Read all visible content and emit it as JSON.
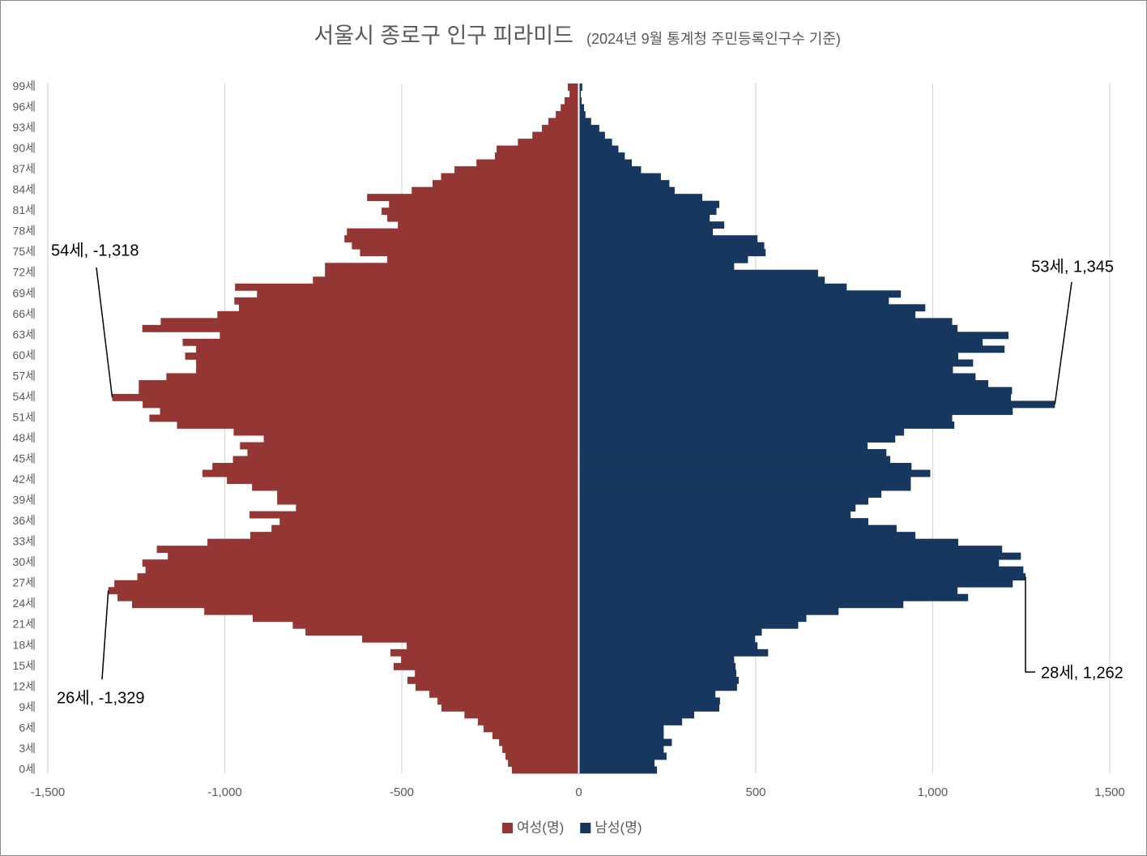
{
  "chart_data": {
    "type": "pyramid",
    "title": "서울시 종로구 인구 피라미드",
    "subtitle": "(2024년 9월 통계청 주민등록인구수 기준)",
    "categories": [
      "0세",
      null,
      null,
      "3세",
      null,
      null,
      "6세",
      null,
      null,
      "9세",
      null,
      null,
      "12세",
      null,
      null,
      "15세",
      null,
      null,
      "18세",
      null,
      null,
      "21세",
      null,
      null,
      "24세",
      null,
      null,
      "27세",
      null,
      null,
      "30세",
      null,
      null,
      "33세",
      null,
      null,
      "36세",
      null,
      null,
      "39세",
      null,
      null,
      "42세",
      null,
      null,
      "45세",
      null,
      null,
      "48세",
      null,
      null,
      "51세",
      null,
      null,
      "54세",
      null,
      null,
      "57세",
      null,
      null,
      "60세",
      null,
      null,
      "63세",
      null,
      null,
      "66세",
      null,
      null,
      "69세",
      null,
      null,
      "72세",
      null,
      null,
      "75세",
      null,
      null,
      "78세",
      null,
      null,
      "81세",
      null,
      null,
      "84세",
      null,
      null,
      "87세",
      null,
      null,
      "90세",
      null,
      null,
      "93세",
      null,
      null,
      "96세",
      null,
      null,
      "99세"
    ],
    "series": [
      {
        "name": "여성(명)",
        "color": "#943634",
        "values": [
          -189,
          -200,
          -207,
          -216,
          -225,
          -244,
          -269,
          -285,
          -323,
          -388,
          -399,
          -422,
          -461,
          -484,
          -463,
          -523,
          -502,
          -532,
          -486,
          -612,
          -772,
          -808,
          -921,
          -1058,
          -1262,
          -1303,
          -1329,
          -1312,
          -1247,
          -1224,
          -1233,
          -1161,
          -1192,
          -1049,
          -928,
          -868,
          -845,
          -930,
          -799,
          -852,
          -852,
          -923,
          -994,
          -1063,
          -1035,
          -977,
          -936,
          -957,
          -890,
          -975,
          -1135,
          -1213,
          -1183,
          -1232,
          -1318,
          -1243,
          -1243,
          -1165,
          -1081,
          -1081,
          -1112,
          -1081,
          -1119,
          -1014,
          -1233,
          -1181,
          -1021,
          -960,
          -973,
          -909,
          -971,
          -751,
          -717,
          -717,
          -541,
          -618,
          -641,
          -662,
          -655,
          -511,
          -541,
          -557,
          -536,
          -598,
          -472,
          -413,
          -389,
          -351,
          -289,
          -237,
          -232,
          -172,
          -131,
          -104,
          -86,
          -65,
          -51,
          -40,
          -26,
          -31
        ]
      },
      {
        "name": "남성(명)",
        "color": "#17375e",
        "values": [
          221,
          214,
          248,
          240,
          263,
          240,
          240,
          292,
          326,
          397,
          399,
          386,
          447,
          452,
          445,
          443,
          439,
          535,
          505,
          498,
          517,
          620,
          643,
          734,
          917,
          1100,
          1070,
          1226,
          1262,
          1256,
          1187,
          1249,
          1196,
          1072,
          951,
          898,
          818,
          768,
          782,
          818,
          855,
          938,
          938,
          993,
          940,
          880,
          869,
          816,
          894,
          919,
          1061,
          1055,
          1226,
          1345,
          1221,
          1224,
          1157,
          1121,
          1057,
          1114,
          1072,
          1203,
          1141,
          1214,
          1070,
          1055,
          951,
          979,
          876,
          910,
          757,
          695,
          676,
          439,
          478,
          528,
          524,
          505,
          379,
          411,
          370,
          389,
          397,
          349,
          271,
          256,
          232,
          176,
          150,
          130,
          112,
          94,
          74,
          58,
          35,
          19,
          15,
          8,
          6,
          10
        ]
      }
    ],
    "xlim": [
      -1500,
      1500
    ],
    "xticks": [
      {
        "value": -1500,
        "label": "-1,500"
      },
      {
        "value": -1000,
        "label": "-1,000"
      },
      -500,
      0,
      500,
      {
        "value": 1000,
        "label": "1,000"
      },
      {
        "value": 1500,
        "label": "1,500"
      }
    ],
    "grid": true,
    "legend": "bottom",
    "annotations": [
      {
        "text": "54세, -1,318"
      },
      {
        "text": "26세, -1,329"
      },
      {
        "text": "53세, 1,345"
      },
      {
        "text": "28세, 1,262"
      }
    ]
  }
}
